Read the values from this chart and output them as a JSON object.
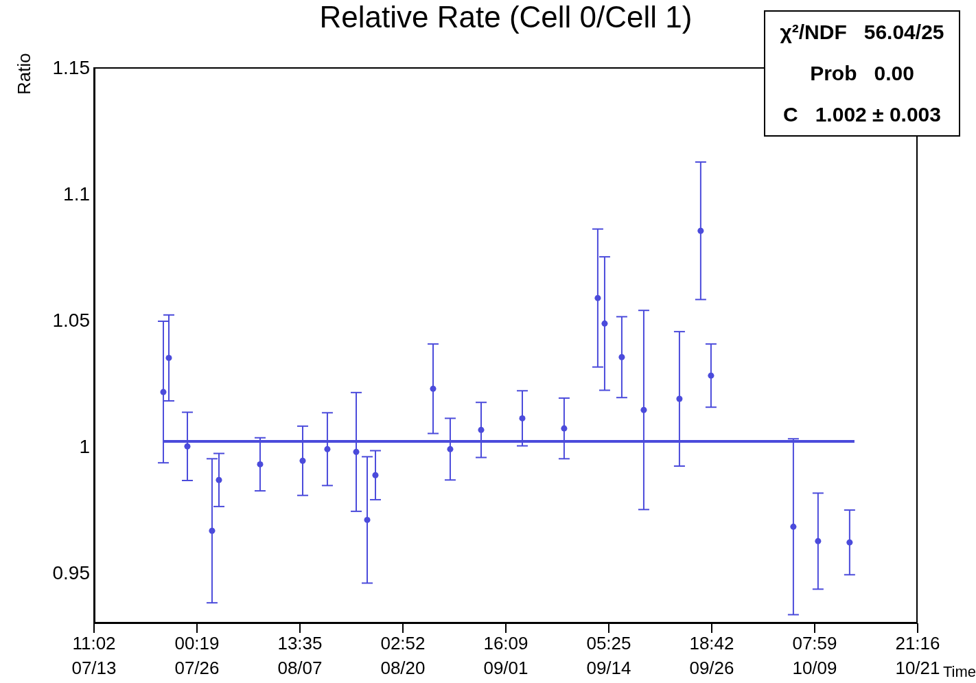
{
  "chart_data": {
    "type": "scatter",
    "title": "Relative Rate (Cell 0/Cell 1)",
    "xlabel": "Time",
    "ylabel": "Ratio",
    "xlim": [
      "--07-13T11:02",
      "--10-21T21:16"
    ],
    "xticks": [
      {
        "value": "--07-13T11:02",
        "label": "11:02\n07/13"
      },
      {
        "value": "--07-26T00:19",
        "label": "00:19\n07/26"
      },
      {
        "value": "--08-07T13:35",
        "label": "13:35\n08/07"
      },
      {
        "value": "--08-20T02:52",
        "label": "02:52\n08/20"
      },
      {
        "value": "--09-01T16:09",
        "label": "16:09\n09/01"
      },
      {
        "value": "--09-14T05:25",
        "label": "05:25\n09/14"
      },
      {
        "value": "--09-26T18:42",
        "label": "18:42\n09/26"
      },
      {
        "value": "--10-09T07:59",
        "label": "07:59\n10/09"
      },
      {
        "value": "--10-21T21:16",
        "label": "21:16\n10/21"
      }
    ],
    "ylim": [
      0.93,
      1.15
    ],
    "yticks": [
      0.95,
      1,
      1.05,
      1.1,
      1.15
    ],
    "grid": false,
    "marker": "circle",
    "annotations": [
      "χ²/NDF   56.04/25",
      "Prob   0.00",
      "C   1.002 ± 0.003"
    ],
    "series": [
      {
        "color": "#4b4bdb",
        "x": [
          "--07-21T21:50",
          "--07-22T13:55",
          "--07-24T20:09",
          "--07-27T20:24",
          "--07-28T16:33",
          "--08-02T17:02",
          "--08-07T21:36",
          "--08-10T21:50",
          "--08-14T10:19",
          "--08-15T18:28",
          "--08-16T18:28",
          "--08-23T19:12",
          "--08-25T21:21",
          "--08-29T15:50",
          "--09-03T16:19",
          "--09-08T18:43",
          "--09-12T21:07",
          "--09-13T17:16",
          "--09-15T19:26",
          "--09-18T11:45",
          "--09-22T20:09",
          "--09-25T10:19",
          "--09-26T16:33",
          "--10-06T17:31",
          "--10-09T17:45",
          "--10-13T14:09"
        ],
        "values": [
          1.0215,
          1.035,
          1.0,
          0.9666,
          0.9867,
          0.9929,
          0.9943,
          0.9989,
          0.9978,
          0.9709,
          0.9886,
          1.0228,
          0.9989,
          1.0065,
          1.0111,
          1.0071,
          1.0587,
          1.0486,
          1.0353,
          1.0144,
          1.0188,
          1.0853,
          1.028,
          0.9682,
          0.9625,
          0.962
        ],
        "errors": [
          0.028,
          0.017,
          0.0135,
          0.0285,
          0.0105,
          0.0105,
          0.0137,
          0.0144,
          0.0235,
          0.025,
          0.0097,
          0.0177,
          0.0122,
          0.0109,
          0.0109,
          0.012,
          0.0273,
          0.0264,
          0.016,
          0.0394,
          0.0266,
          0.0272,
          0.0125,
          0.0348,
          0.019,
          0.0128
        ]
      },
      {
        "type": "line",
        "marker": "none",
        "color": "#4b4bdb",
        "x": [
          "--07-21T21:50",
          "--10-14T04:19"
        ],
        "values": [
          1.002,
          1.002
        ]
      }
    ]
  }
}
